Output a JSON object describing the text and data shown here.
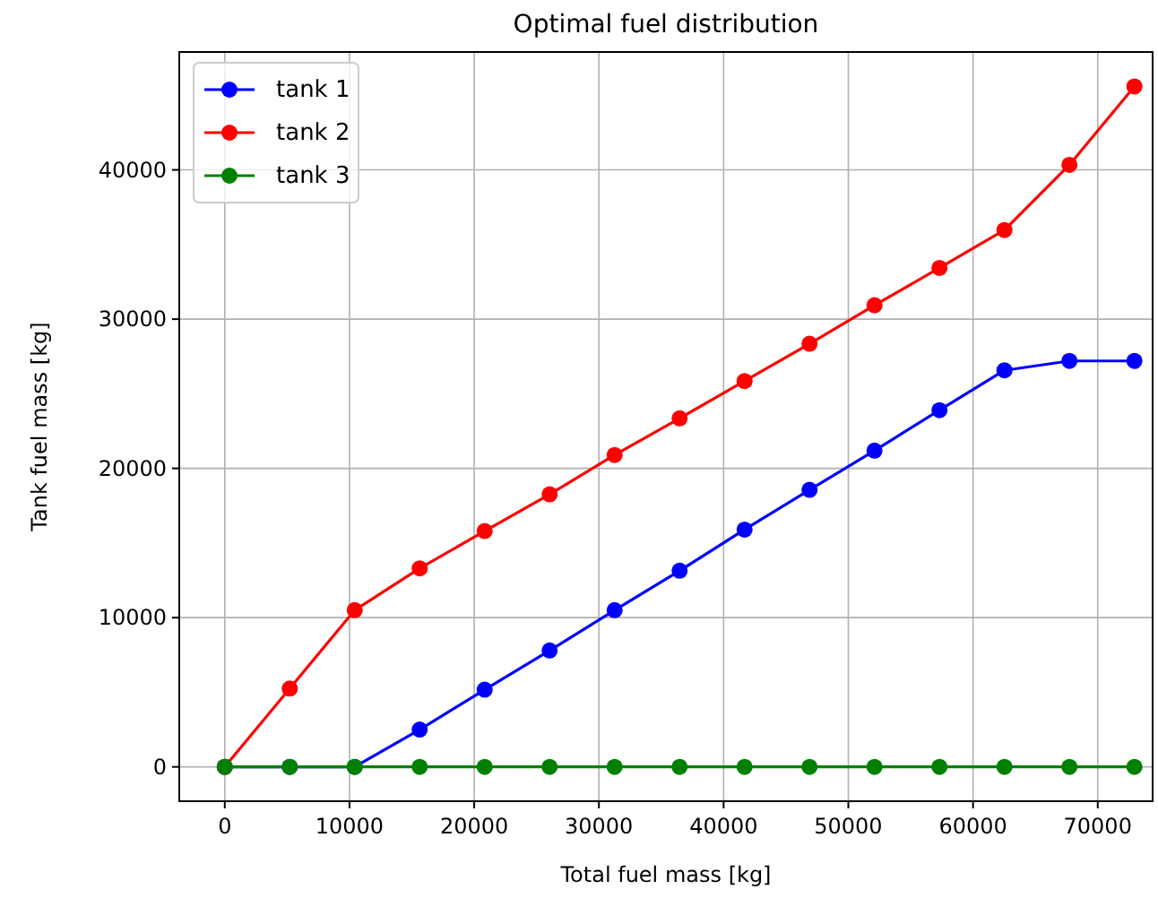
{
  "chart_data": {
    "type": "line",
    "title": "Optimal fuel distribution",
    "xlabel": "Total fuel mass [kg]",
    "ylabel": "Tank fuel mass [kg]",
    "x": [
      0,
      5210,
      10420,
      15630,
      20840,
      26050,
      31260,
      36470,
      41680,
      46890,
      52100,
      57310,
      62520,
      67730,
      72940
    ],
    "series": [
      {
        "name": "tank 1",
        "color": "#0000ff",
        "values": [
          0,
          0,
          0,
          2500,
          5170,
          7800,
          10500,
          13140,
          15900,
          18560,
          21190,
          23900,
          26570,
          27200,
          27200
        ]
      },
      {
        "name": "tank 2",
        "color": "#ff0000",
        "values": [
          0,
          5250,
          10500,
          13300,
          15800,
          18260,
          20900,
          23350,
          25850,
          28350,
          30930,
          33430,
          35970,
          40340,
          45590
        ]
      },
      {
        "name": "tank 3",
        "color": "#008000",
        "values": [
          0,
          0,
          0,
          0,
          0,
          0,
          0,
          0,
          0,
          0,
          0,
          0,
          0,
          0,
          0
        ]
      }
    ],
    "xlim": [
      -3650,
      74400
    ],
    "ylim": [
      -2300,
      47900
    ],
    "xticks": [
      0,
      10000,
      20000,
      30000,
      40000,
      50000,
      60000,
      70000
    ],
    "yticks": [
      0,
      10000,
      20000,
      30000,
      40000
    ],
    "grid": true,
    "legend": "top left",
    "marker": "circle",
    "line_style": "solid"
  }
}
